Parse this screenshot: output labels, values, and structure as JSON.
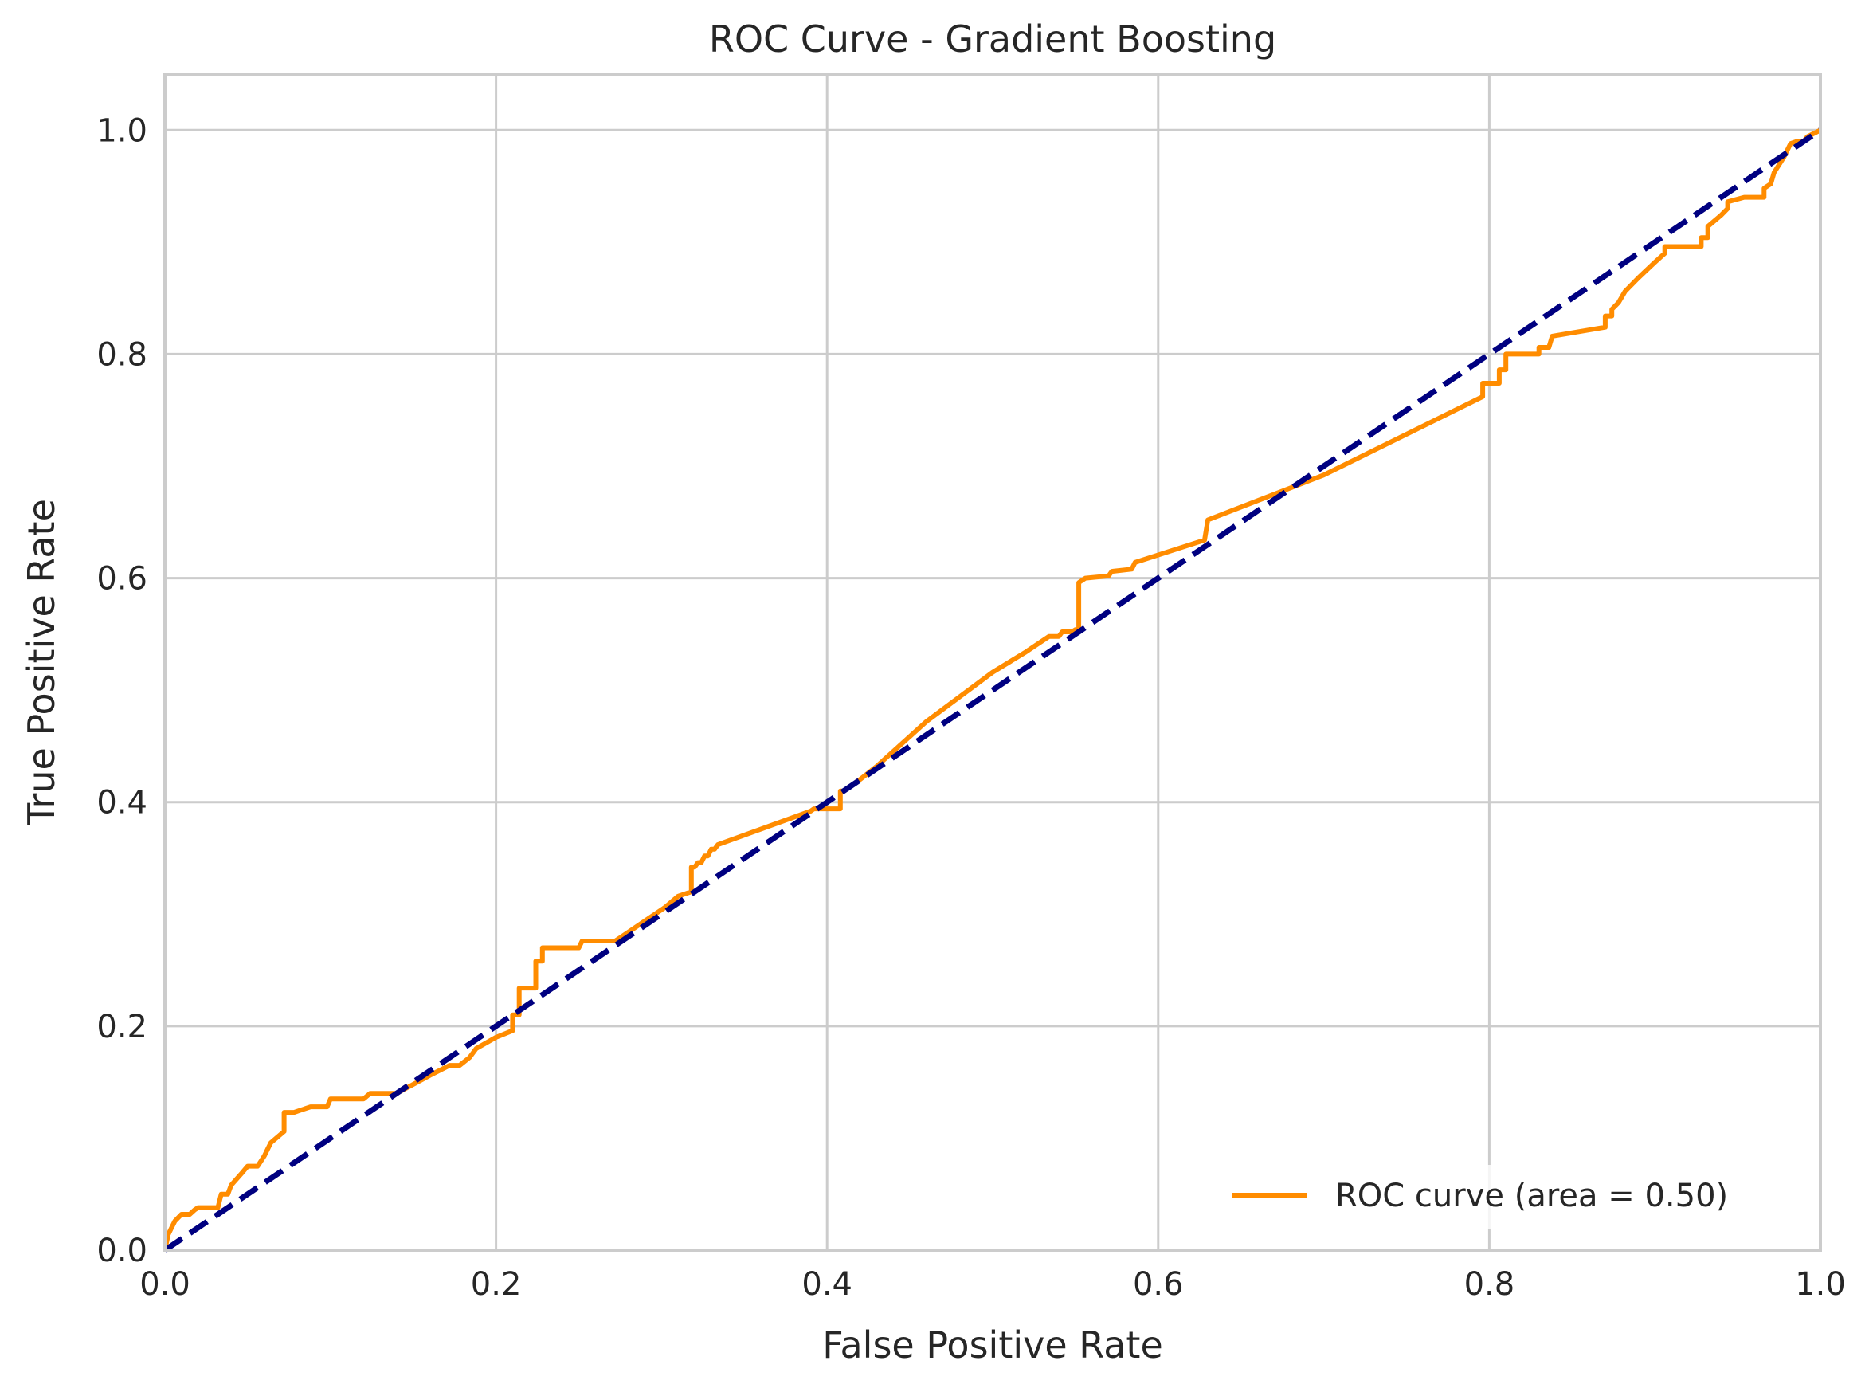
{
  "chart_data": {
    "type": "line",
    "title": "ROC Curve - Gradient Boosting",
    "xlabel": "False Positive Rate",
    "ylabel": "True Positive Rate",
    "xlim": [
      0.0,
      1.0
    ],
    "ylim": [
      0.0,
      1.05
    ],
    "xticks": [
      "0.0",
      "0.2",
      "0.4",
      "0.6",
      "0.8",
      "1.0"
    ],
    "yticks": [
      "0.0",
      "0.2",
      "0.4",
      "0.6",
      "0.8",
      "1.0"
    ],
    "grid": true,
    "legend": {
      "position": "lower right",
      "entries": [
        "ROC curve (area = 0.50)"
      ]
    },
    "series": [
      {
        "name": "ROC curve (area = 0.50)",
        "color": "#ff8c00",
        "style": "solid",
        "x": [
          0.0,
          0.002,
          0.004,
          0.006,
          0.01,
          0.015,
          0.018,
          0.02,
          0.024,
          0.032,
          0.034,
          0.038,
          0.04,
          0.046,
          0.05,
          0.056,
          0.06,
          0.062,
          0.064,
          0.072,
          0.072,
          0.078,
          0.088,
          0.098,
          0.1,
          0.12,
          0.124,
          0.14,
          0.16,
          0.172,
          0.178,
          0.184,
          0.188,
          0.2,
          0.21,
          0.21,
          0.214,
          0.214,
          0.224,
          0.224,
          0.228,
          0.228,
          0.238,
          0.25,
          0.252,
          0.272,
          0.282,
          0.292,
          0.302,
          0.31,
          0.318,
          0.318,
          0.32,
          0.322,
          0.324,
          0.326,
          0.328,
          0.33,
          0.332,
          0.334,
          0.39,
          0.392,
          0.4,
          0.408,
          0.408,
          0.41,
          0.418,
          0.43,
          0.46,
          0.5,
          0.52,
          0.534,
          0.54,
          0.542,
          0.548,
          0.55,
          0.552,
          0.552,
          0.556,
          0.57,
          0.572,
          0.584,
          0.586,
          0.628,
          0.63,
          0.7,
          0.796,
          0.796,
          0.806,
          0.806,
          0.81,
          0.81,
          0.828,
          0.83,
          0.83,
          0.836,
          0.838,
          0.87,
          0.87,
          0.874,
          0.874,
          0.878,
          0.882,
          0.89,
          0.9,
          0.906,
          0.906,
          0.928,
          0.928,
          0.932,
          0.932,
          0.94,
          0.944,
          0.944,
          0.954,
          0.956,
          0.966,
          0.966,
          0.97,
          0.972,
          0.978,
          0.982,
          0.986,
          0.99,
          0.992,
          1.0
        ],
        "y": [
          0.0,
          0.014,
          0.02,
          0.026,
          0.032,
          0.032,
          0.036,
          0.038,
          0.038,
          0.038,
          0.05,
          0.05,
          0.058,
          0.068,
          0.075,
          0.075,
          0.084,
          0.09,
          0.096,
          0.106,
          0.123,
          0.123,
          0.128,
          0.128,
          0.135,
          0.135,
          0.14,
          0.14,
          0.156,
          0.165,
          0.165,
          0.172,
          0.18,
          0.19,
          0.196,
          0.21,
          0.21,
          0.234,
          0.234,
          0.258,
          0.258,
          0.27,
          0.27,
          0.27,
          0.276,
          0.276,
          0.286,
          0.296,
          0.306,
          0.316,
          0.32,
          0.342,
          0.342,
          0.346,
          0.346,
          0.352,
          0.352,
          0.358,
          0.358,
          0.362,
          0.392,
          0.394,
          0.394,
          0.394,
          0.41,
          0.41,
          0.418,
          0.432,
          0.472,
          0.516,
          0.534,
          0.548,
          0.548,
          0.552,
          0.552,
          0.554,
          0.554,
          0.596,
          0.6,
          0.602,
          0.606,
          0.608,
          0.614,
          0.634,
          0.652,
          0.692,
          0.762,
          0.774,
          0.774,
          0.786,
          0.786,
          0.8,
          0.8,
          0.8,
          0.806,
          0.806,
          0.816,
          0.824,
          0.834,
          0.834,
          0.84,
          0.846,
          0.856,
          0.868,
          0.882,
          0.89,
          0.896,
          0.896,
          0.904,
          0.904,
          0.914,
          0.924,
          0.93,
          0.936,
          0.94,
          0.94,
          0.94,
          0.948,
          0.952,
          0.962,
          0.976,
          0.988,
          0.99,
          0.99,
          0.994,
          1.0
        ]
      },
      {
        "name": "",
        "color": "#000080",
        "style": "dashed",
        "x": [
          0.0,
          1.0
        ],
        "y": [
          0.0,
          1.0
        ]
      }
    ]
  }
}
